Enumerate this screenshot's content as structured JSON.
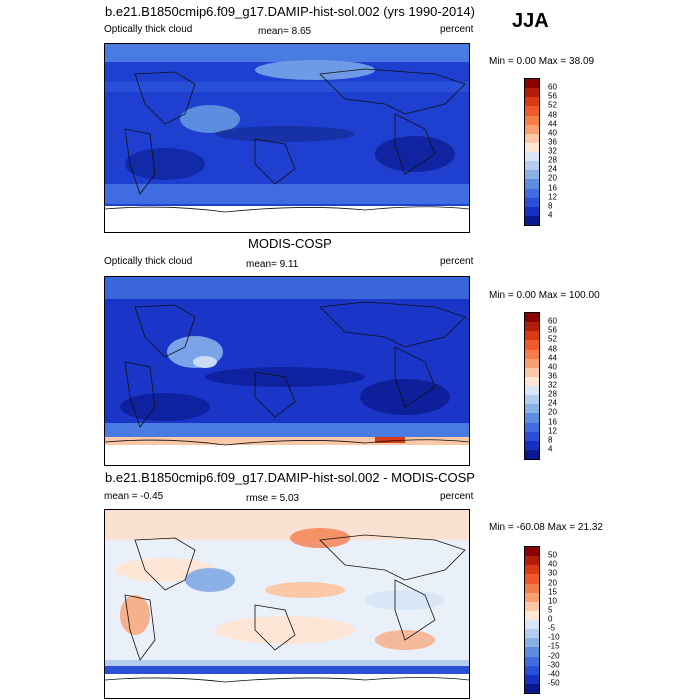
{
  "header": {
    "season": "JJA"
  },
  "panels": [
    {
      "title": "b.e21.B1850cmip6.f09_g17.DAMIP-hist-sol.002 (yrs 1990-2014)",
      "left_label": "Optically thick cloud",
      "stat_label": "mean=  8.65",
      "units": "percent",
      "range": "Min =   0.00 Max =  38.09",
      "colorbar": {
        "ticks": [
          "60",
          "56",
          "52",
          "48",
          "44",
          "40",
          "36",
          "32",
          "28",
          "24",
          "20",
          "16",
          "12",
          "8",
          "4"
        ],
        "colors": [
          "#8b0000",
          "#b01e0a",
          "#d93a14",
          "#ef5a2a",
          "#f47d4c",
          "#f8a070",
          "#fbc8a8",
          "#fde6d6",
          "#d9e6f5",
          "#b4ccee",
          "#8ab0e6",
          "#5b8ede",
          "#3f6ce0",
          "#2a4ed6",
          "#1830c2",
          "#0a1a8e"
        ],
        "mean_value": 8.65
      }
    },
    {
      "title": "MODIS-COSP",
      "left_label": "Optically thick cloud",
      "stat_label": "mean=   9.11",
      "units": "percent",
      "range": "Min =   0.00 Max = 100.00",
      "colorbar": {
        "ticks": [
          "60",
          "56",
          "52",
          "48",
          "44",
          "40",
          "36",
          "32",
          "28",
          "24",
          "20",
          "16",
          "12",
          "8",
          "4"
        ],
        "colors": [
          "#8b0000",
          "#b01e0a",
          "#d93a14",
          "#ef5a2a",
          "#f47d4c",
          "#f8a070",
          "#fbc8a8",
          "#fde6d6",
          "#d9e6f5",
          "#b4ccee",
          "#8ab0e6",
          "#5b8ede",
          "#3f6ce0",
          "#2a4ed6",
          "#1830c2",
          "#0a1a8e"
        ],
        "mean_value": 9.11
      }
    },
    {
      "title": "b.e21.B1850cmip6.f09_g17.DAMIP-hist-sol.002 - MODIS-COSP",
      "left_label": "mean =  -0.45",
      "stat_label": "rmse =   5.03",
      "units": "percent",
      "range": "Min = -60.08 Max =  21.32",
      "colorbar": {
        "ticks": [
          "50",
          "40",
          "30",
          "20",
          "15",
          "10",
          "5",
          "0",
          "-5",
          "-10",
          "-15",
          "-20",
          "-30",
          "-40",
          "-50"
        ],
        "colors": [
          "#8b0000",
          "#b01e0a",
          "#d93a14",
          "#ef5a2a",
          "#f47d4c",
          "#f8a070",
          "#fbc8a8",
          "#fde6d6",
          "#d9e6f5",
          "#b4ccee",
          "#8ab0e6",
          "#5b8ede",
          "#3f6ce0",
          "#2a4ed6",
          "#1830c2",
          "#0a1a8e"
        ],
        "mean_value": -0.45
      }
    }
  ]
}
